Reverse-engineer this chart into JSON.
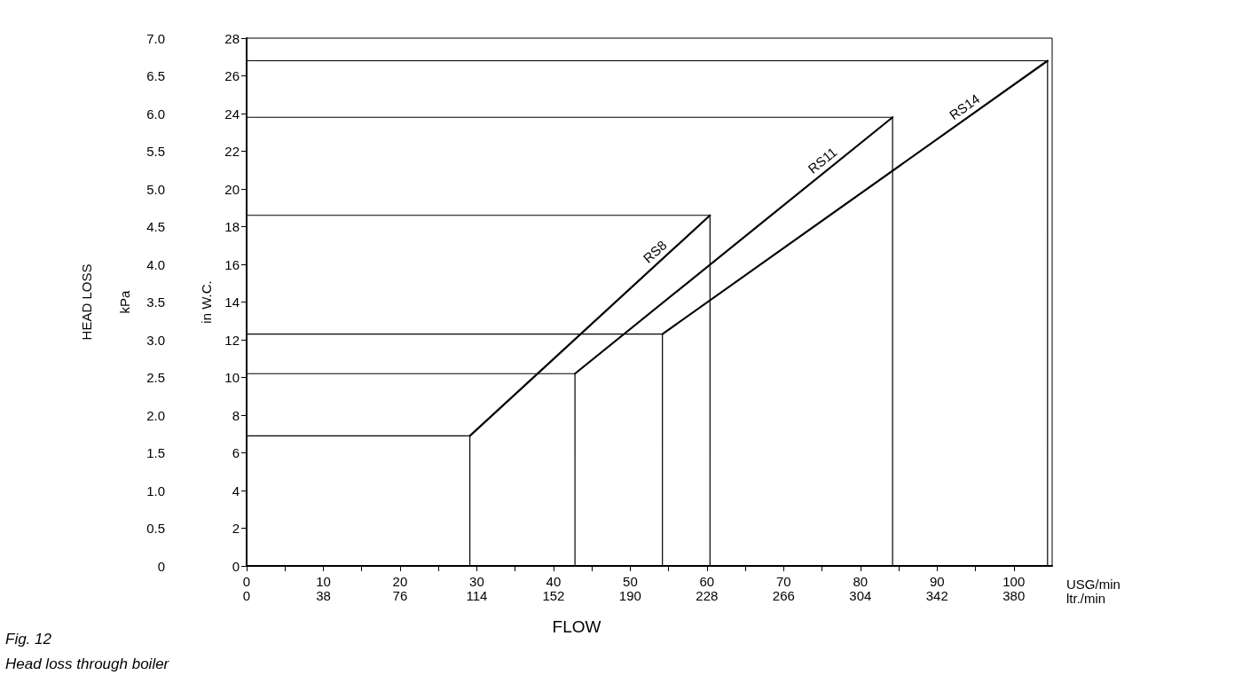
{
  "chart_data": {
    "type": "line",
    "xlabel": "USG/min",
    "x2label": "ltr./min",
    "ylabel": "in W.C.",
    "y2label": "kPa",
    "annotations": [
      "HEAD LOSS",
      "FLOW",
      "Fig. 12",
      "Head loss through boiler"
    ],
    "xlim": [
      0,
      105
    ],
    "xticks": [
      0,
      {
        "value": 5,
        "label": null
      },
      10,
      {
        "value": 15,
        "label": null
      },
      20,
      {
        "value": 25,
        "label": null
      },
      30,
      {
        "value": 35,
        "label": null
      },
      40,
      {
        "value": 45,
        "label": null
      },
      50,
      {
        "value": 55,
        "label": null
      },
      60,
      {
        "value": 65,
        "label": null
      },
      70,
      {
        "value": 75,
        "label": null
      },
      80,
      {
        "value": 85,
        "label": null
      },
      90,
      {
        "value": 95,
        "label": null
      },
      100
    ],
    "x2lim": [
      0,
      399
    ],
    "x2ticks": [
      0,
      38,
      76,
      114,
      152,
      190,
      228,
      266,
      304,
      342,
      380
    ],
    "ylim": [
      0,
      28
    ],
    "yticks": [
      0,
      2,
      4,
      6,
      8,
      10,
      12,
      14,
      16,
      18,
      20,
      22,
      24,
      26,
      28
    ],
    "y2lim": [
      0,
      7
    ],
    "y2ticks": [
      {
        "value": 0,
        "label": "0"
      },
      {
        "value": 0.5,
        "label": "0.5"
      },
      {
        "value": 1,
        "label": "1.0"
      },
      {
        "value": 1.5,
        "label": "1.5"
      },
      {
        "value": 2,
        "label": "2.0"
      },
      {
        "value": 2.5,
        "label": "2.5"
      },
      {
        "value": 3,
        "label": "3.0"
      },
      {
        "value": 3.5,
        "label": "3.5"
      },
      {
        "value": 4,
        "label": "4.0"
      },
      {
        "value": 4.5,
        "label": "4.5"
      },
      {
        "value": 5,
        "label": "5.0"
      },
      {
        "value": 5.5,
        "label": "5.5"
      },
      {
        "value": 6,
        "label": "6.0"
      },
      {
        "value": 6.5,
        "label": "6.5"
      },
      {
        "value": 7,
        "label": "7.0"
      }
    ],
    "grid": false,
    "legend": false,
    "marker": "none",
    "line_style": "solid",
    "series": [
      {
        "name": "RS8",
        "color": "#000000",
        "x": [
          29.1,
          60.4
        ],
        "values": [
          6.9,
          18.6
        ]
      },
      {
        "name": "RS11",
        "color": "#000000",
        "x": [
          42.8,
          84.2
        ],
        "values": [
          10.2,
          23.8
        ]
      },
      {
        "name": "RS14",
        "color": "#000000",
        "x": [
          54.2,
          104.4
        ],
        "values": [
          12.3,
          26.8
        ]
      },
      {
        "color": "#000000",
        "x": [
          0,
          29.1,
          29.1
        ],
        "values": [
          6.9,
          6.9,
          0
        ]
      },
      {
        "color": "#000000",
        "x": [
          0,
          60.4,
          60.4
        ],
        "values": [
          18.6,
          18.6,
          0
        ]
      },
      {
        "color": "#000000",
        "x": [
          0,
          42.8,
          42.8
        ],
        "values": [
          10.2,
          10.2,
          0
        ]
      },
      {
        "color": "#000000",
        "x": [
          0,
          84.2,
          84.2
        ],
        "values": [
          23.8,
          23.8,
          0
        ]
      },
      {
        "color": "#000000",
        "x": [
          0,
          54.2,
          54.2
        ],
        "values": [
          12.3,
          12.3,
          0
        ]
      },
      {
        "color": "#000000",
        "x": [
          0,
          104.4,
          104.4
        ],
        "values": [
          26.8,
          26.8,
          0
        ]
      }
    ]
  }
}
